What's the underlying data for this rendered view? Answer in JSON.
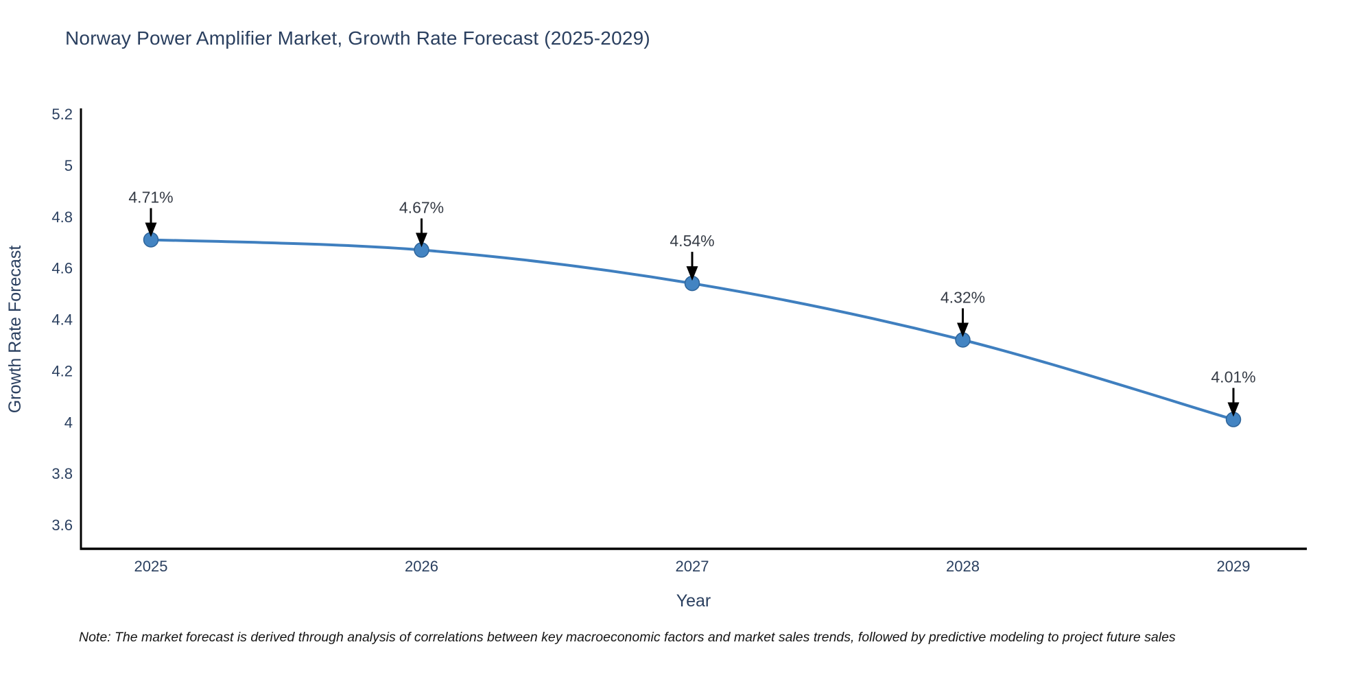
{
  "title": "Norway Power Amplifier Market, Growth Rate Forecast (2025-2029)",
  "note": "Note: The market forecast is derived through analysis of correlations between key macroeconomic factors and market sales trends, followed by predictive modeling to project future sales",
  "chart_data": {
    "type": "line",
    "title": "Norway Power Amplifier Market, Growth Rate Forecast (2025-2029)",
    "x": [
      2025,
      2026,
      2027,
      2028,
      2029
    ],
    "series": [
      {
        "name": "Growth Rate Forecast",
        "values": [
          4.71,
          4.67,
          4.54,
          4.32,
          4.01
        ]
      }
    ],
    "point_labels": [
      "4.71%",
      "4.67%",
      "4.54%",
      "4.32%",
      "4.01%"
    ],
    "xlabel": "Year",
    "ylabel": "Growth Rate Forecast",
    "xticks": [
      2025,
      2026,
      2027,
      2028,
      2029
    ],
    "yticks": [
      3.6,
      3.8,
      4,
      4.2,
      4.4,
      4.6,
      4.8,
      5,
      5.2
    ],
    "ylim": [
      3.51,
      5.22
    ],
    "grid": false,
    "legend": "none",
    "colors": {
      "line": "#3f7fbf",
      "marker_fill": "#4384c2",
      "marker_edge": "#2d6399",
      "axis": "#000000",
      "text": "#2a3f5f",
      "annotation_text": "#353b45",
      "arrow": "#000000",
      "background": "#ffffff"
    }
  }
}
